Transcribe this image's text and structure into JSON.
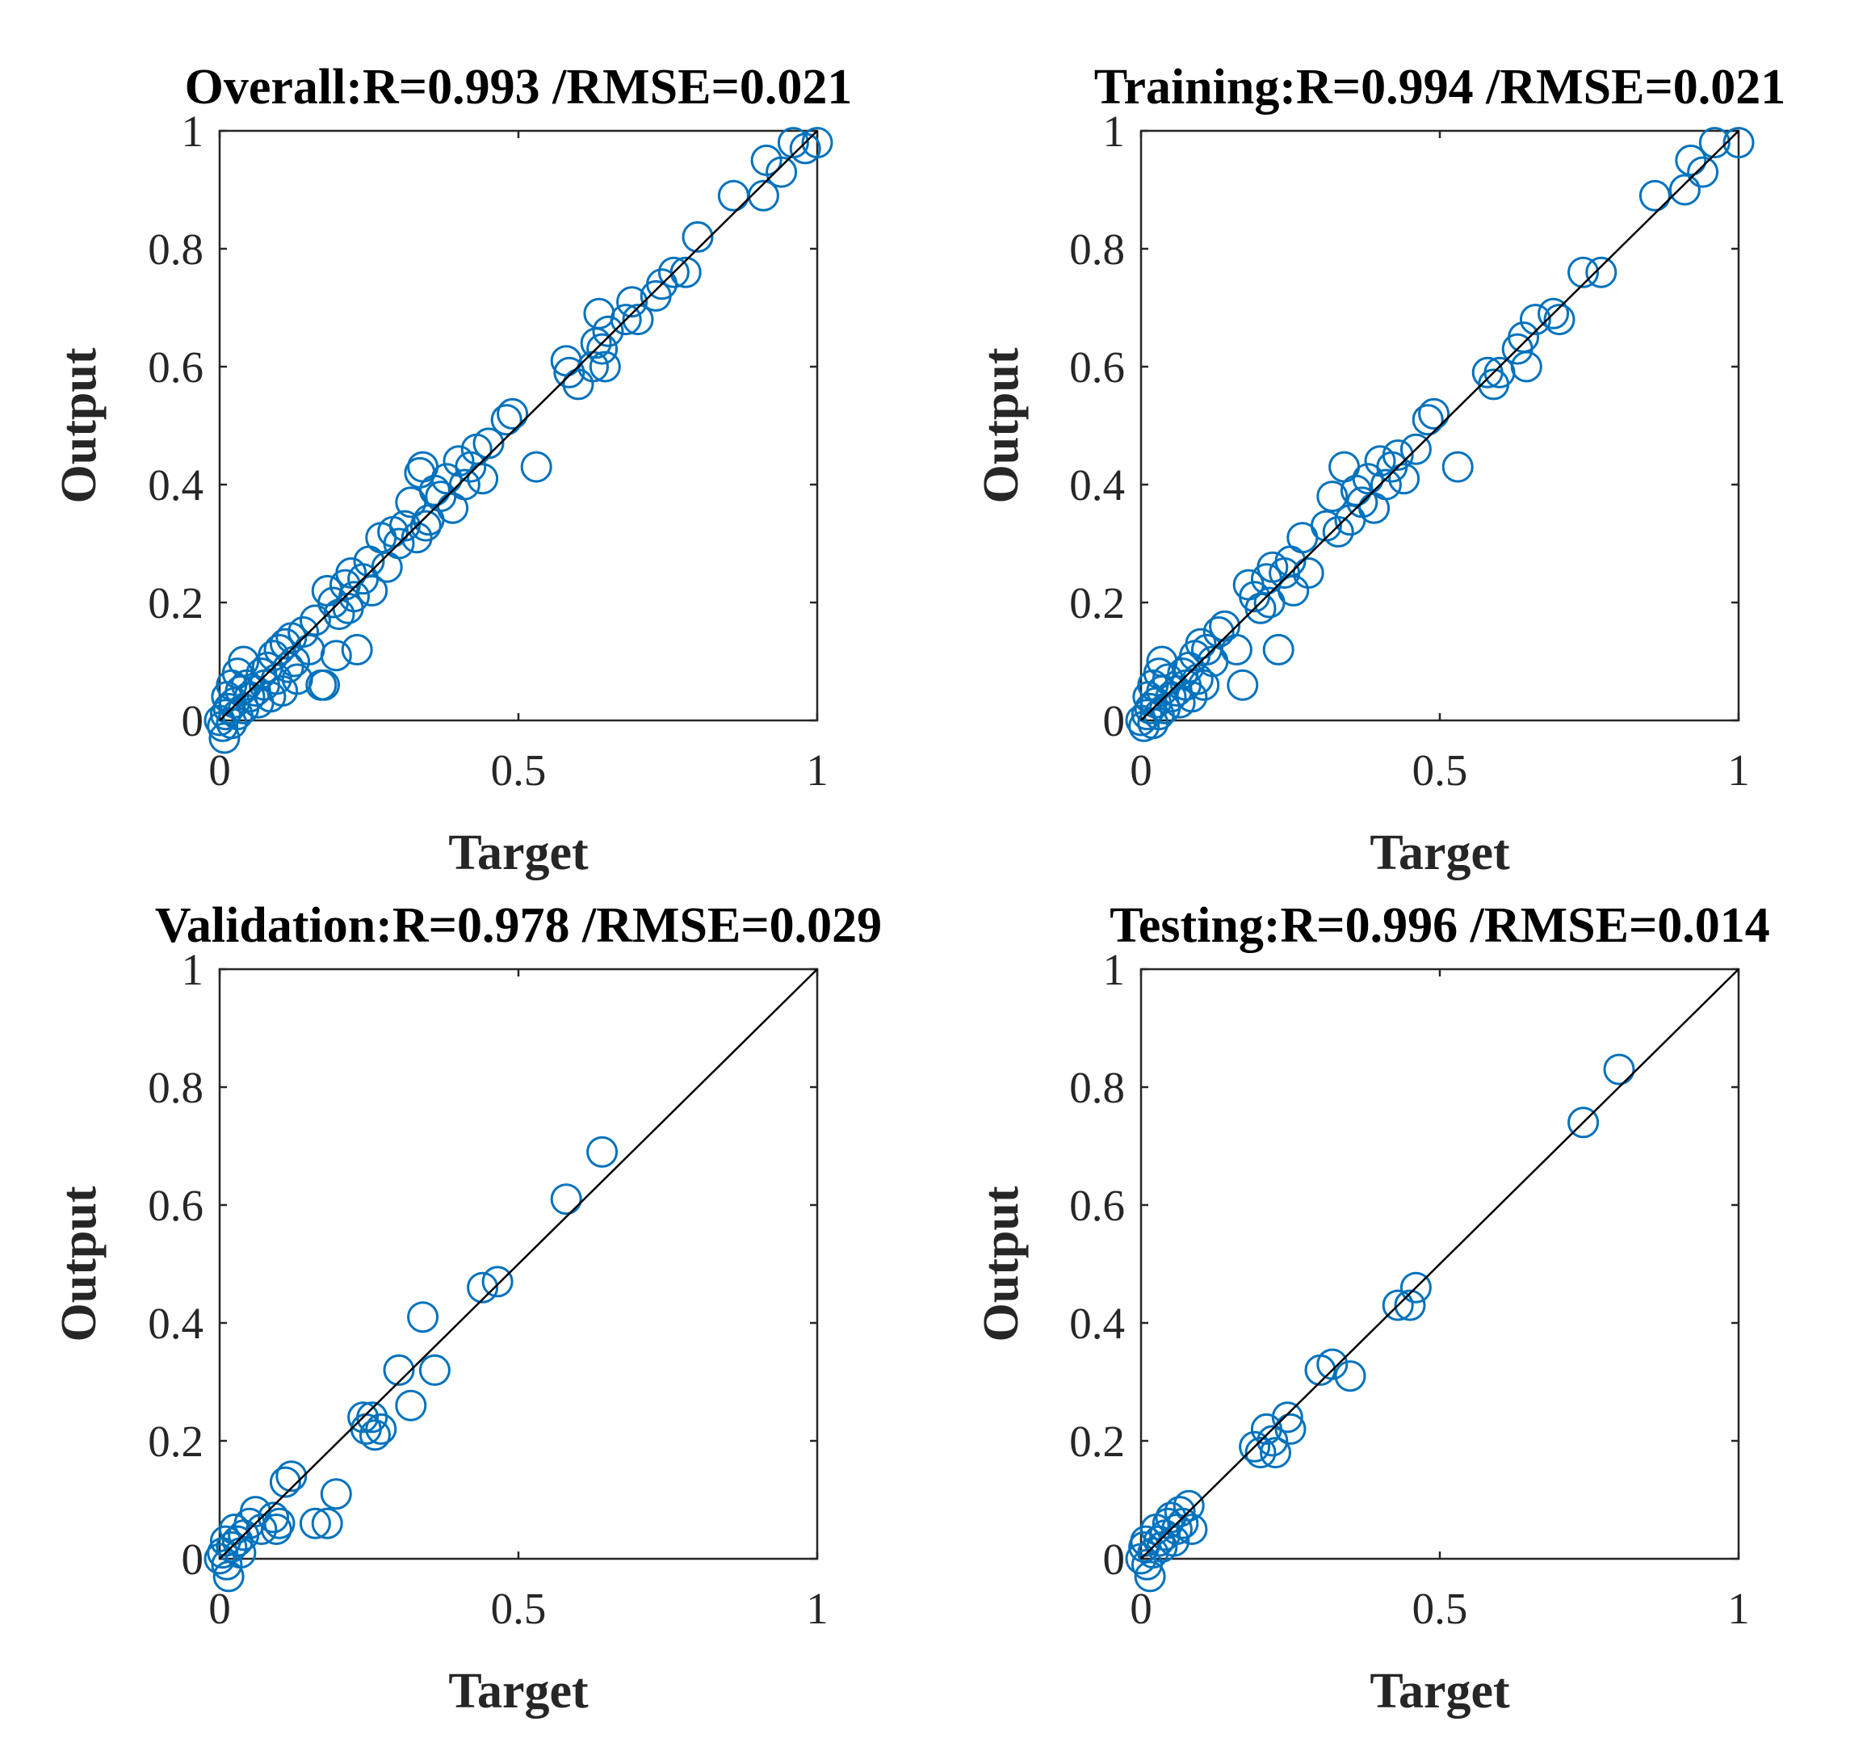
{
  "colors": {
    "marker": "#0072BD",
    "line": "#000000",
    "axis": "#262626"
  },
  "chart_data": [
    {
      "type": "scatter",
      "title": "Overall:R=0.993 /RMSE=0.021",
      "xlabel": "Target",
      "ylabel": "Output",
      "xlim": [
        0,
        1
      ],
      "ylim": [
        0,
        1
      ],
      "xticks": [
        "0",
        "0.5",
        "1"
      ],
      "yticks": [
        "0",
        "0.2",
        "0.4",
        "0.6",
        "0.8",
        "1"
      ],
      "fit_line": [
        [
          0,
          0
        ],
        [
          1,
          1
        ]
      ],
      "points": [
        [
          0.0,
          0.0
        ],
        [
          0.005,
          -0.01
        ],
        [
          0.01,
          0.01
        ],
        [
          0.015,
          0.02
        ],
        [
          0.02,
          -0.005
        ],
        [
          0.025,
          0.03
        ],
        [
          0.008,
          -0.03
        ],
        [
          0.03,
          0.01
        ],
        [
          0.035,
          0.05
        ],
        [
          0.04,
          0.02
        ],
        [
          0.045,
          0.06
        ],
        [
          0.05,
          0.04
        ],
        [
          0.012,
          0.04
        ],
        [
          0.02,
          0.06
        ],
        [
          0.03,
          0.08
        ],
        [
          0.04,
          0.1
        ],
        [
          0.06,
          0.05
        ],
        [
          0.065,
          0.03
        ],
        [
          0.07,
          0.08
        ],
        [
          0.075,
          0.06
        ],
        [
          0.08,
          0.09
        ],
        [
          0.085,
          0.04
        ],
        [
          0.09,
          0.11
        ],
        [
          0.095,
          0.07
        ],
        [
          0.1,
          0.12
        ],
        [
          0.105,
          0.05
        ],
        [
          0.11,
          0.13
        ],
        [
          0.115,
          0.09
        ],
        [
          0.12,
          0.14
        ],
        [
          0.125,
          0.1
        ],
        [
          0.13,
          0.07
        ],
        [
          0.14,
          0.15
        ],
        [
          0.15,
          0.12
        ],
        [
          0.16,
          0.17
        ],
        [
          0.17,
          0.06
        ],
        [
          0.175,
          0.06
        ],
        [
          0.18,
          0.22
        ],
        [
          0.19,
          0.2
        ],
        [
          0.195,
          0.11
        ],
        [
          0.2,
          0.18
        ],
        [
          0.21,
          0.23
        ],
        [
          0.215,
          0.19
        ],
        [
          0.22,
          0.25
        ],
        [
          0.225,
          0.21
        ],
        [
          0.23,
          0.12
        ],
        [
          0.24,
          0.24
        ],
        [
          0.25,
          0.27
        ],
        [
          0.255,
          0.22
        ],
        [
          0.27,
          0.31
        ],
        [
          0.28,
          0.26
        ],
        [
          0.29,
          0.32
        ],
        [
          0.3,
          0.3
        ],
        [
          0.31,
          0.33
        ],
        [
          0.32,
          0.37
        ],
        [
          0.33,
          0.31
        ],
        [
          0.335,
          0.42
        ],
        [
          0.34,
          0.43
        ],
        [
          0.345,
          0.33
        ],
        [
          0.35,
          0.34
        ],
        [
          0.36,
          0.39
        ],
        [
          0.37,
          0.38
        ],
        [
          0.38,
          0.41
        ],
        [
          0.39,
          0.36
        ],
        [
          0.4,
          0.44
        ],
        [
          0.41,
          0.4
        ],
        [
          0.42,
          0.43
        ],
        [
          0.43,
          0.46
        ],
        [
          0.44,
          0.41
        ],
        [
          0.45,
          0.47
        ],
        [
          0.48,
          0.51
        ],
        [
          0.49,
          0.52
        ],
        [
          0.53,
          0.43
        ],
        [
          0.58,
          0.61
        ],
        [
          0.585,
          0.59
        ],
        [
          0.6,
          0.57
        ],
        [
          0.625,
          0.6
        ],
        [
          0.63,
          0.64
        ],
        [
          0.635,
          0.69
        ],
        [
          0.64,
          0.63
        ],
        [
          0.645,
          0.6
        ],
        [
          0.65,
          0.66
        ],
        [
          0.68,
          0.68
        ],
        [
          0.69,
          0.71
        ],
        [
          0.7,
          0.68
        ],
        [
          0.73,
          0.72
        ],
        [
          0.74,
          0.74
        ],
        [
          0.76,
          0.76
        ],
        [
          0.78,
          0.76
        ],
        [
          0.8,
          0.82
        ],
        [
          0.86,
          0.89
        ],
        [
          0.91,
          0.89
        ],
        [
          0.915,
          0.95
        ],
        [
          0.94,
          0.93
        ],
        [
          0.96,
          0.98
        ],
        [
          0.98,
          0.97
        ],
        [
          1.0,
          0.98
        ]
      ]
    },
    {
      "type": "scatter",
      "title": "Training:R=0.994 /RMSE=0.021",
      "xlabel": "Target",
      "ylabel": "Output",
      "xlim": [
        0,
        1
      ],
      "ylim": [
        0,
        1
      ],
      "xticks": [
        "0",
        "0.5",
        "1"
      ],
      "yticks": [
        "0",
        "0.2",
        "0.4",
        "0.6",
        "0.8",
        "1"
      ],
      "fit_line": [
        [
          0,
          0
        ],
        [
          1,
          1
        ]
      ],
      "points": [
        [
          0.0,
          0.0
        ],
        [
          0.005,
          -0.01
        ],
        [
          0.01,
          0.01
        ],
        [
          0.015,
          0.02
        ],
        [
          0.02,
          -0.005
        ],
        [
          0.025,
          0.03
        ],
        [
          0.03,
          0.01
        ],
        [
          0.035,
          0.05
        ],
        [
          0.04,
          0.02
        ],
        [
          0.045,
          0.07
        ],
        [
          0.05,
          0.04
        ],
        [
          0.012,
          0.04
        ],
        [
          0.02,
          0.06
        ],
        [
          0.03,
          0.08
        ],
        [
          0.035,
          0.1
        ],
        [
          0.06,
          0.05
        ],
        [
          0.065,
          0.03
        ],
        [
          0.07,
          0.08
        ],
        [
          0.075,
          0.06
        ],
        [
          0.08,
          0.09
        ],
        [
          0.085,
          0.04
        ],
        [
          0.09,
          0.11
        ],
        [
          0.095,
          0.07
        ],
        [
          0.1,
          0.13
        ],
        [
          0.105,
          0.06
        ],
        [
          0.11,
          0.12
        ],
        [
          0.12,
          0.1
        ],
        [
          0.13,
          0.15
        ],
        [
          0.14,
          0.16
        ],
        [
          0.16,
          0.12
        ],
        [
          0.17,
          0.06
        ],
        [
          0.18,
          0.23
        ],
        [
          0.19,
          0.21
        ],
        [
          0.2,
          0.19
        ],
        [
          0.21,
          0.24
        ],
        [
          0.215,
          0.2
        ],
        [
          0.22,
          0.26
        ],
        [
          0.23,
          0.12
        ],
        [
          0.24,
          0.25
        ],
        [
          0.25,
          0.27
        ],
        [
          0.255,
          0.22
        ],
        [
          0.27,
          0.31
        ],
        [
          0.28,
          0.25
        ],
        [
          0.31,
          0.33
        ],
        [
          0.32,
          0.38
        ],
        [
          0.33,
          0.32
        ],
        [
          0.34,
          0.43
        ],
        [
          0.35,
          0.34
        ],
        [
          0.36,
          0.39
        ],
        [
          0.37,
          0.37
        ],
        [
          0.38,
          0.41
        ],
        [
          0.39,
          0.36
        ],
        [
          0.4,
          0.44
        ],
        [
          0.41,
          0.4
        ],
        [
          0.42,
          0.43
        ],
        [
          0.43,
          0.45
        ],
        [
          0.44,
          0.41
        ],
        [
          0.46,
          0.46
        ],
        [
          0.48,
          0.51
        ],
        [
          0.49,
          0.52
        ],
        [
          0.53,
          0.43
        ],
        [
          0.58,
          0.59
        ],
        [
          0.59,
          0.57
        ],
        [
          0.6,
          0.59
        ],
        [
          0.63,
          0.63
        ],
        [
          0.64,
          0.65
        ],
        [
          0.645,
          0.6
        ],
        [
          0.66,
          0.68
        ],
        [
          0.69,
          0.69
        ],
        [
          0.7,
          0.68
        ],
        [
          0.74,
          0.76
        ],
        [
          0.77,
          0.76
        ],
        [
          0.86,
          0.89
        ],
        [
          0.91,
          0.9
        ],
        [
          0.92,
          0.95
        ],
        [
          0.94,
          0.93
        ],
        [
          0.96,
          0.98
        ],
        [
          1.0,
          0.98
        ]
      ]
    },
    {
      "type": "scatter",
      "title": "Validation:R=0.978 /RMSE=0.029",
      "xlabel": "Target",
      "ylabel": "Output",
      "xlim": [
        0,
        1
      ],
      "ylim": [
        0,
        1
      ],
      "xticks": [
        "0",
        "0.5",
        "1"
      ],
      "yticks": [
        "0",
        "0.2",
        "0.4",
        "0.6",
        "0.8",
        "1"
      ],
      "fit_line": [
        [
          0,
          0
        ],
        [
          1,
          1
        ]
      ],
      "points": [
        [
          0.0,
          0.0
        ],
        [
          0.005,
          0.01
        ],
        [
          0.01,
          0.03
        ],
        [
          0.012,
          -0.01
        ],
        [
          0.015,
          -0.03
        ],
        [
          0.02,
          0.02
        ],
        [
          0.025,
          0.05
        ],
        [
          0.03,
          0.03
        ],
        [
          0.035,
          0.01
        ],
        [
          0.04,
          0.04
        ],
        [
          0.05,
          0.06
        ],
        [
          0.06,
          0.08
        ],
        [
          0.07,
          0.05
        ],
        [
          0.09,
          0.07
        ],
        [
          0.095,
          0.05
        ],
        [
          0.1,
          0.06
        ],
        [
          0.11,
          0.13
        ],
        [
          0.12,
          0.14
        ],
        [
          0.16,
          0.06
        ],
        [
          0.18,
          0.06
        ],
        [
          0.195,
          0.11
        ],
        [
          0.24,
          0.24
        ],
        [
          0.245,
          0.22
        ],
        [
          0.255,
          0.24
        ],
        [
          0.26,
          0.21
        ],
        [
          0.27,
          0.22
        ],
        [
          0.3,
          0.32
        ],
        [
          0.32,
          0.26
        ],
        [
          0.34,
          0.41
        ],
        [
          0.36,
          0.32
        ],
        [
          0.44,
          0.46
        ],
        [
          0.465,
          0.47
        ],
        [
          0.58,
          0.61
        ],
        [
          0.64,
          0.69
        ]
      ]
    },
    {
      "type": "scatter",
      "title": "Testing:R=0.996 /RMSE=0.014",
      "xlabel": "Target",
      "ylabel": "Output",
      "xlim": [
        0,
        1
      ],
      "ylim": [
        0,
        1
      ],
      "xticks": [
        "0",
        "0.5",
        "1"
      ],
      "yticks": [
        "0",
        "0.2",
        "0.4",
        "0.6",
        "0.8",
        "1"
      ],
      "fit_line": [
        [
          0,
          0
        ],
        [
          1,
          1
        ]
      ],
      "points": [
        [
          0.0,
          0.0
        ],
        [
          0.005,
          0.02
        ],
        [
          0.008,
          0.03
        ],
        [
          0.01,
          -0.01
        ],
        [
          0.015,
          -0.03
        ],
        [
          0.02,
          0.01
        ],
        [
          0.025,
          0.05
        ],
        [
          0.03,
          0.03
        ],
        [
          0.035,
          0.02
        ],
        [
          0.04,
          0.04
        ],
        [
          0.045,
          0.06
        ],
        [
          0.05,
          0.07
        ],
        [
          0.055,
          0.03
        ],
        [
          0.06,
          0.05
        ],
        [
          0.065,
          0.08
        ],
        [
          0.07,
          0.06
        ],
        [
          0.08,
          0.09
        ],
        [
          0.085,
          0.05
        ],
        [
          0.19,
          0.19
        ],
        [
          0.2,
          0.18
        ],
        [
          0.21,
          0.22
        ],
        [
          0.22,
          0.2
        ],
        [
          0.225,
          0.18
        ],
        [
          0.245,
          0.24
        ],
        [
          0.25,
          0.22
        ],
        [
          0.3,
          0.32
        ],
        [
          0.32,
          0.33
        ],
        [
          0.35,
          0.31
        ],
        [
          0.43,
          0.43
        ],
        [
          0.45,
          0.43
        ],
        [
          0.46,
          0.46
        ],
        [
          0.74,
          0.74
        ],
        [
          0.8,
          0.83
        ]
      ]
    }
  ]
}
